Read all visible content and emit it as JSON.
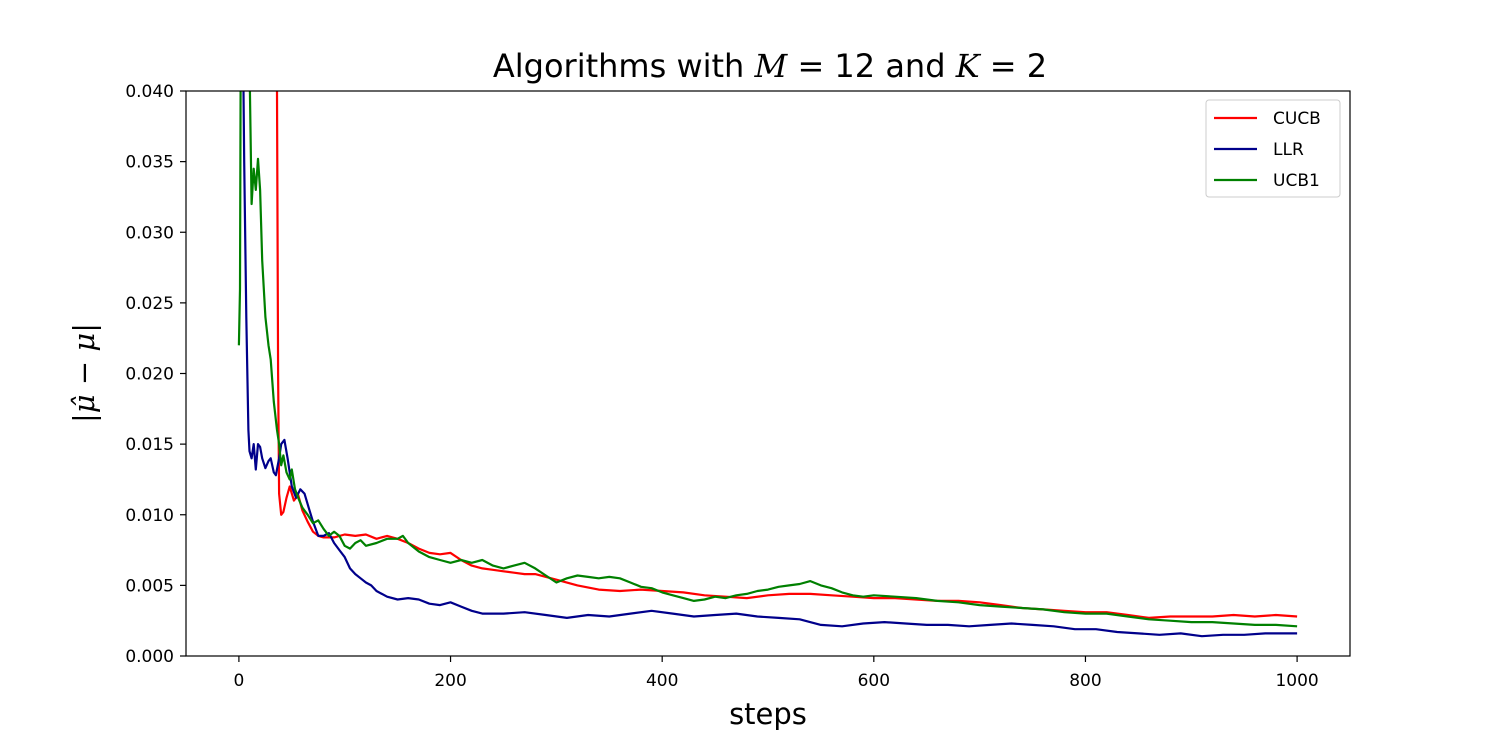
{
  "chart_data": {
    "type": "line",
    "title": "Algorithms with M = 12 and K = 2",
    "title_parts": {
      "prefix": "Algorithms with ",
      "var_m": "M",
      "eq1": " = 12 and ",
      "var_k": "K",
      "eq2": " = 2"
    },
    "xlabel": "steps",
    "ylabel": "|μ̂ − μ|",
    "xlim": [
      -50,
      1050
    ],
    "ylim": [
      0,
      0.04
    ],
    "xticks": [
      0,
      200,
      400,
      600,
      800,
      1000
    ],
    "xtick_labels": [
      "0",
      "200",
      "400",
      "600",
      "800",
      "1000"
    ],
    "yticks": [
      0.0,
      0.005,
      0.01,
      0.015,
      0.02,
      0.025,
      0.03,
      0.035,
      0.04
    ],
    "ytick_labels": [
      "0.000",
      "0.005",
      "0.010",
      "0.015",
      "0.020",
      "0.025",
      "0.030",
      "0.035",
      "0.040"
    ],
    "grid": false,
    "legend_position": "top-right",
    "series": [
      {
        "name": "CUCB",
        "color": "#ff0000",
        "points": [
          [
            35,
            0.05
          ],
          [
            36,
            0.04
          ],
          [
            37,
            0.02
          ],
          [
            38,
            0.0115
          ],
          [
            40,
            0.01
          ],
          [
            42,
            0.0102
          ],
          [
            45,
            0.0112
          ],
          [
            48,
            0.012
          ],
          [
            52,
            0.011
          ],
          [
            56,
            0.0114
          ],
          [
            60,
            0.0103
          ],
          [
            65,
            0.0095
          ],
          [
            70,
            0.0088
          ],
          [
            75,
            0.0085
          ],
          [
            80,
            0.0084
          ],
          [
            90,
            0.0084
          ],
          [
            100,
            0.0086
          ],
          [
            110,
            0.0085
          ],
          [
            120,
            0.0086
          ],
          [
            130,
            0.0083
          ],
          [
            140,
            0.0085
          ],
          [
            150,
            0.0083
          ],
          [
            160,
            0.008
          ],
          [
            170,
            0.0076
          ],
          [
            180,
            0.0073
          ],
          [
            190,
            0.0072
          ],
          [
            200,
            0.0073
          ],
          [
            210,
            0.0068
          ],
          [
            220,
            0.0064
          ],
          [
            230,
            0.0062
          ],
          [
            240,
            0.0061
          ],
          [
            250,
            0.006
          ],
          [
            260,
            0.0059
          ],
          [
            270,
            0.0058
          ],
          [
            280,
            0.0058
          ],
          [
            300,
            0.0054
          ],
          [
            320,
            0.005
          ],
          [
            340,
            0.0047
          ],
          [
            360,
            0.0046
          ],
          [
            380,
            0.0047
          ],
          [
            400,
            0.0046
          ],
          [
            420,
            0.0045
          ],
          [
            440,
            0.0043
          ],
          [
            460,
            0.0042
          ],
          [
            480,
            0.0041
          ],
          [
            500,
            0.0043
          ],
          [
            520,
            0.0044
          ],
          [
            540,
            0.0044
          ],
          [
            560,
            0.0043
          ],
          [
            580,
            0.0042
          ],
          [
            600,
            0.0041
          ],
          [
            620,
            0.0041
          ],
          [
            640,
            0.004
          ],
          [
            660,
            0.0039
          ],
          [
            680,
            0.0039
          ],
          [
            700,
            0.0038
          ],
          [
            720,
            0.0036
          ],
          [
            740,
            0.0034
          ],
          [
            760,
            0.0033
          ],
          [
            780,
            0.0032
          ],
          [
            800,
            0.0031
          ],
          [
            820,
            0.0031
          ],
          [
            840,
            0.0029
          ],
          [
            860,
            0.0027
          ],
          [
            880,
            0.0028
          ],
          [
            900,
            0.0028
          ],
          [
            920,
            0.0028
          ],
          [
            940,
            0.0029
          ],
          [
            960,
            0.0028
          ],
          [
            980,
            0.0029
          ],
          [
            1000,
            0.0028
          ]
        ]
      },
      {
        "name": "LLR",
        "color": "#00008b",
        "points": [
          [
            3,
            0.05
          ],
          [
            5,
            0.035
          ],
          [
            7,
            0.024
          ],
          [
            9,
            0.016
          ],
          [
            10,
            0.0145
          ],
          [
            12,
            0.014
          ],
          [
            14,
            0.015
          ],
          [
            16,
            0.0132
          ],
          [
            18,
            0.015
          ],
          [
            20,
            0.0148
          ],
          [
            22,
            0.014
          ],
          [
            25,
            0.0133
          ],
          [
            28,
            0.0138
          ],
          [
            30,
            0.014
          ],
          [
            33,
            0.013
          ],
          [
            35,
            0.0128
          ],
          [
            38,
            0.014
          ],
          [
            40,
            0.015
          ],
          [
            43,
            0.0153
          ],
          [
            46,
            0.014
          ],
          [
            50,
            0.012
          ],
          [
            54,
            0.0112
          ],
          [
            58,
            0.0118
          ],
          [
            62,
            0.0115
          ],
          [
            66,
            0.0105
          ],
          [
            70,
            0.0095
          ],
          [
            75,
            0.0085
          ],
          [
            80,
            0.0085
          ],
          [
            85,
            0.0087
          ],
          [
            90,
            0.008
          ],
          [
            95,
            0.0075
          ],
          [
            100,
            0.007
          ],
          [
            105,
            0.0062
          ],
          [
            110,
            0.0058
          ],
          [
            115,
            0.0055
          ],
          [
            120,
            0.0052
          ],
          [
            125,
            0.005
          ],
          [
            130,
            0.0046
          ],
          [
            140,
            0.0042
          ],
          [
            150,
            0.004
          ],
          [
            160,
            0.0041
          ],
          [
            170,
            0.004
          ],
          [
            180,
            0.0037
          ],
          [
            190,
            0.0036
          ],
          [
            200,
            0.0038
          ],
          [
            210,
            0.0035
          ],
          [
            220,
            0.0032
          ],
          [
            230,
            0.003
          ],
          [
            250,
            0.003
          ],
          [
            270,
            0.0031
          ],
          [
            290,
            0.0029
          ],
          [
            310,
            0.0027
          ],
          [
            330,
            0.0029
          ],
          [
            350,
            0.0028
          ],
          [
            370,
            0.003
          ],
          [
            390,
            0.0032
          ],
          [
            410,
            0.003
          ],
          [
            430,
            0.0028
          ],
          [
            450,
            0.0029
          ],
          [
            470,
            0.003
          ],
          [
            490,
            0.0028
          ],
          [
            510,
            0.0027
          ],
          [
            530,
            0.0026
          ],
          [
            550,
            0.0022
          ],
          [
            570,
            0.0021
          ],
          [
            590,
            0.0023
          ],
          [
            610,
            0.0024
          ],
          [
            630,
            0.0023
          ],
          [
            650,
            0.0022
          ],
          [
            670,
            0.0022
          ],
          [
            690,
            0.0021
          ],
          [
            710,
            0.0022
          ],
          [
            730,
            0.0023
          ],
          [
            750,
            0.0022
          ],
          [
            770,
            0.0021
          ],
          [
            790,
            0.0019
          ],
          [
            810,
            0.0019
          ],
          [
            830,
            0.0017
          ],
          [
            850,
            0.0016
          ],
          [
            870,
            0.0015
          ],
          [
            890,
            0.0016
          ],
          [
            910,
            0.0014
          ],
          [
            930,
            0.0015
          ],
          [
            950,
            0.0015
          ],
          [
            970,
            0.0016
          ],
          [
            990,
            0.0016
          ],
          [
            1000,
            0.0016
          ]
        ]
      },
      {
        "name": "UCB1",
        "color": "#008000",
        "points": [
          [
            0,
            0.022
          ],
          [
            1,
            0.026
          ],
          [
            2,
            0.05
          ],
          [
            8,
            0.05
          ],
          [
            10,
            0.042
          ],
          [
            12,
            0.032
          ],
          [
            14,
            0.0345
          ],
          [
            16,
            0.033
          ],
          [
            18,
            0.0352
          ],
          [
            20,
            0.033
          ],
          [
            22,
            0.028
          ],
          [
            25,
            0.024
          ],
          [
            28,
            0.022
          ],
          [
            30,
            0.021
          ],
          [
            33,
            0.018
          ],
          [
            36,
            0.016
          ],
          [
            38,
            0.015
          ],
          [
            40,
            0.0135
          ],
          [
            42,
            0.0142
          ],
          [
            45,
            0.013
          ],
          [
            48,
            0.0125
          ],
          [
            50,
            0.0132
          ],
          [
            53,
            0.0118
          ],
          [
            56,
            0.0112
          ],
          [
            60,
            0.0105
          ],
          [
            65,
            0.01
          ],
          [
            70,
            0.0094
          ],
          [
            75,
            0.0096
          ],
          [
            80,
            0.009
          ],
          [
            85,
            0.0085
          ],
          [
            90,
            0.0088
          ],
          [
            95,
            0.0085
          ],
          [
            100,
            0.0078
          ],
          [
            105,
            0.0076
          ],
          [
            110,
            0.008
          ],
          [
            115,
            0.0082
          ],
          [
            120,
            0.0078
          ],
          [
            130,
            0.008
          ],
          [
            140,
            0.0083
          ],
          [
            150,
            0.0083
          ],
          [
            155,
            0.0085
          ],
          [
            160,
            0.008
          ],
          [
            170,
            0.0074
          ],
          [
            180,
            0.007
          ],
          [
            190,
            0.0068
          ],
          [
            200,
            0.0066
          ],
          [
            210,
            0.0068
          ],
          [
            220,
            0.0066
          ],
          [
            230,
            0.0068
          ],
          [
            240,
            0.0064
          ],
          [
            250,
            0.0062
          ],
          [
            260,
            0.0064
          ],
          [
            270,
            0.0066
          ],
          [
            280,
            0.0062
          ],
          [
            290,
            0.0057
          ],
          [
            300,
            0.0052
          ],
          [
            310,
            0.0055
          ],
          [
            320,
            0.0057
          ],
          [
            330,
            0.0056
          ],
          [
            340,
            0.0055
          ],
          [
            350,
            0.0056
          ],
          [
            360,
            0.0055
          ],
          [
            370,
            0.0052
          ],
          [
            380,
            0.0049
          ],
          [
            390,
            0.0048
          ],
          [
            400,
            0.0045
          ],
          [
            410,
            0.0043
          ],
          [
            420,
            0.0041
          ],
          [
            430,
            0.0039
          ],
          [
            440,
            0.004
          ],
          [
            450,
            0.0042
          ],
          [
            460,
            0.0041
          ],
          [
            470,
            0.0043
          ],
          [
            480,
            0.0044
          ],
          [
            490,
            0.0046
          ],
          [
            500,
            0.0047
          ],
          [
            510,
            0.0049
          ],
          [
            520,
            0.005
          ],
          [
            530,
            0.0051
          ],
          [
            540,
            0.0053
          ],
          [
            550,
            0.005
          ],
          [
            560,
            0.0048
          ],
          [
            570,
            0.0045
          ],
          [
            580,
            0.0043
          ],
          [
            590,
            0.0042
          ],
          [
            600,
            0.0043
          ],
          [
            620,
            0.0042
          ],
          [
            640,
            0.0041
          ],
          [
            660,
            0.0039
          ],
          [
            680,
            0.0038
          ],
          [
            700,
            0.0036
          ],
          [
            720,
            0.0035
          ],
          [
            740,
            0.0034
          ],
          [
            760,
            0.0033
          ],
          [
            780,
            0.0031
          ],
          [
            800,
            0.003
          ],
          [
            820,
            0.003
          ],
          [
            840,
            0.0028
          ],
          [
            860,
            0.0026
          ],
          [
            880,
            0.0025
          ],
          [
            900,
            0.0024
          ],
          [
            920,
            0.0024
          ],
          [
            940,
            0.0023
          ],
          [
            960,
            0.0022
          ],
          [
            980,
            0.0022
          ],
          [
            1000,
            0.0021
          ]
        ]
      }
    ]
  }
}
